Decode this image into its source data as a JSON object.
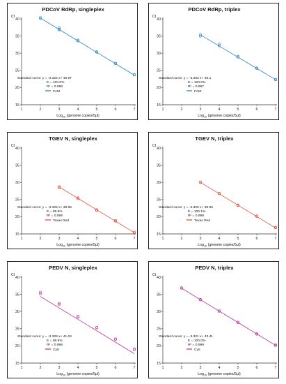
{
  "chart_data": [
    {
      "type": "scatter",
      "title": "PDCoV RdRp, singleplex",
      "ylabel": "Ct",
      "xlabel_main": "Log",
      "xlabel_sub": "10",
      "xlabel_rest": " (genome copies/5μl)",
      "xlim": [
        1,
        7
      ],
      "ylim": [
        15,
        40
      ],
      "xticks": [
        "1",
        "2",
        "3",
        "4",
        "5",
        "6",
        "7"
      ],
      "yticks": [
        "15",
        "20",
        "25",
        "30",
        "35",
        "40"
      ],
      "color": "#2e86c1",
      "fit": {
        "slope": -3.322,
        "intercept": 46.87
      },
      "points": [
        [
          2,
          40.2
        ],
        [
          2,
          40.3
        ],
        [
          3,
          37.4
        ],
        [
          3,
          37.0
        ],
        [
          3,
          36.8
        ],
        [
          4,
          33.6
        ],
        [
          4,
          33.8
        ],
        [
          5,
          30.3
        ],
        [
          5,
          30.4
        ],
        [
          6,
          27.0
        ],
        [
          6,
          27.1
        ],
        [
          7,
          23.7
        ],
        [
          7,
          23.8
        ]
      ],
      "annotation": [
        "Standard curve: y = -3.322 x+ 46.87",
        "E = 100.0%",
        "R² = 0.998"
      ],
      "legend": "FAM"
    },
    {
      "type": "scatter",
      "title": "PDCoV RdRp, triplex",
      "ylabel": "Ct",
      "xlabel_main": "Log",
      "xlabel_sub": "10",
      "xlabel_rest": " (genome copies/5μl)",
      "xlim": [
        1,
        7
      ],
      "ylim": [
        15,
        40
      ],
      "xticks": [
        "1",
        "2",
        "3",
        "4",
        "5",
        "6",
        "7"
      ],
      "yticks": [
        "15",
        "20",
        "25",
        "30",
        "35",
        "40"
      ],
      "color": "#2e86c1",
      "fit": {
        "slope": -3.253,
        "intercept": 45.1
      },
      "points": [
        [
          3,
          35.4
        ],
        [
          3,
          35.0
        ],
        [
          4,
          32.6
        ],
        [
          4,
          32.2
        ],
        [
          5,
          28.9
        ],
        [
          5,
          29.1
        ],
        [
          6,
          25.6
        ],
        [
          6,
          25.7
        ],
        [
          7,
          22.3
        ],
        [
          7,
          22.4
        ]
      ],
      "annotation": [
        "Standard curve: y = -3.253 x+ 45.1",
        "E = 103.0%",
        "R² = 0.997"
      ],
      "legend": "FAM"
    },
    {
      "type": "scatter",
      "title": "TGEV N, singleplex",
      "ylabel": "Ct",
      "xlabel_main": "Log",
      "xlabel_sub": "10",
      "xlabel_rest": " (genome copies/5μl)",
      "xlim": [
        1,
        7
      ],
      "ylim": [
        15,
        40
      ],
      "xticks": [
        "1",
        "2",
        "3",
        "4",
        "5",
        "6",
        "7"
      ],
      "yticks": [
        "15",
        "20",
        "25",
        "30",
        "35",
        "40"
      ],
      "color": "#e74c3c",
      "fit": {
        "slope": -3.325,
        "intercept": 38.65
      },
      "points": [
        [
          3,
          28.7
        ],
        [
          3,
          28.5
        ],
        [
          4,
          25.3
        ],
        [
          4,
          25.5
        ],
        [
          5,
          22.0
        ],
        [
          5,
          21.8
        ],
        [
          6,
          18.7
        ],
        [
          6,
          18.9
        ],
        [
          7,
          15.3
        ],
        [
          7,
          15.5
        ]
      ],
      "annotation": [
        "Standard curve: y = -3.325 x+ 38.65",
        "E = 99.9%",
        "R² = 0.999"
      ],
      "legend": "Texas Red"
    },
    {
      "type": "scatter",
      "title": "TGEV N, triplex",
      "ylabel": "Ct",
      "xlabel_main": "Log",
      "xlabel_sub": "10",
      "xlabel_rest": " (genome copies/5μl)",
      "xlim": [
        1,
        7
      ],
      "ylim": [
        15,
        40
      ],
      "xticks": [
        "1",
        "2",
        "3",
        "4",
        "5",
        "6",
        "7"
      ],
      "yticks": [
        "15",
        "20",
        "25",
        "30",
        "35",
        "40"
      ],
      "color": "#e74c3c",
      "fit": {
        "slope": -3.32,
        "intercept": 39.96
      },
      "points": [
        [
          3,
          30.1
        ],
        [
          3,
          30.0
        ],
        [
          4,
          26.7
        ],
        [
          4,
          26.8
        ],
        [
          5,
          23.4
        ],
        [
          5,
          23.3
        ],
        [
          6,
          20.1
        ],
        [
          6,
          20.2
        ],
        [
          7,
          16.9
        ],
        [
          7,
          16.8
        ]
      ],
      "annotation": [
        "Standard curve: y = -3.320 x+ 39.96",
        "E = 100.1%",
        "R² = 0.999"
      ],
      "legend": "Texas Red"
    },
    {
      "type": "scatter",
      "title": "PEDV N, singleplex",
      "ylabel": "Ct",
      "xlabel_main": "Log",
      "xlabel_sub": "10",
      "xlabel_rest": " (genome copies/5μl)",
      "xlim": [
        1,
        7
      ],
      "ylim": [
        15,
        40
      ],
      "xticks": [
        "1",
        "2",
        "3",
        "4",
        "5",
        "6",
        "7"
      ],
      "yticks": [
        "15",
        "20",
        "25",
        "30",
        "35",
        "40"
      ],
      "color": "#c0399b",
      "fit": {
        "slope": -3.328,
        "intercept": 41.04
      },
      "points": [
        [
          2,
          35.6
        ],
        [
          2,
          35.2
        ],
        [
          3,
          32.3
        ],
        [
          3,
          32.1
        ],
        [
          4,
          28.6
        ],
        [
          4,
          28.4
        ],
        [
          5,
          25.3
        ],
        [
          5,
          25.4
        ],
        [
          6,
          21.9
        ],
        [
          6,
          22.0
        ],
        [
          7,
          18.9
        ],
        [
          7,
          19.1
        ]
      ],
      "annotation": [
        "Standard curve: y = -3.328 x+ 41.04",
        "E = 99.8%",
        "R² = 0.999"
      ],
      "legend": "Cy5"
    },
    {
      "type": "scatter",
      "title": "PEDV N, triplex",
      "ylabel": "Ct",
      "xlabel_main": "Log",
      "xlabel_sub": "10",
      "xlabel_rest": " (genome copies/5μl)",
      "xlim": [
        1,
        7
      ],
      "ylim": [
        15,
        40
      ],
      "xticks": [
        "1",
        "2",
        "3",
        "4",
        "5",
        "6",
        "7"
      ],
      "yticks": [
        "15",
        "20",
        "25",
        "30",
        "35",
        "40"
      ],
      "color": "#c0399b",
      "fit": {
        "slope": -3.321,
        "intercept": 43.41
      },
      "points": [
        [
          2,
          36.8
        ],
        [
          2,
          36.9
        ],
        [
          3,
          33.4
        ],
        [
          3,
          33.5
        ],
        [
          4,
          30.1
        ],
        [
          4,
          30.2
        ],
        [
          5,
          26.8
        ],
        [
          5,
          26.9
        ],
        [
          6,
          23.4
        ],
        [
          6,
          23.5
        ],
        [
          7,
          20.3
        ],
        [
          7,
          20.1
        ]
      ],
      "annotation": [
        "Standard curve: y = -3.321 x+ 43.41",
        "E = 100.0%",
        "R² = 0.999"
      ],
      "legend": "Cy5"
    }
  ]
}
